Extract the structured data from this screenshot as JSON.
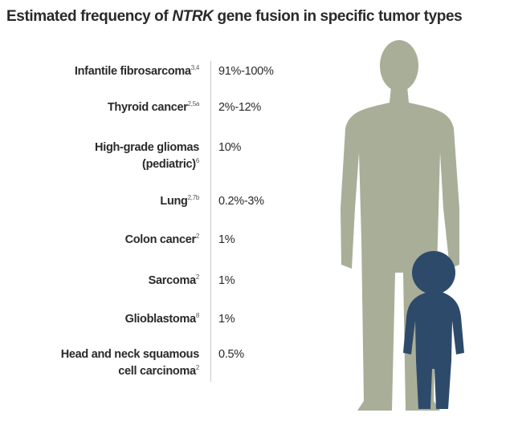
{
  "title": {
    "before": "Estimated frequency of",
    "emphasis": "NTRK",
    "after": "gene fusion in specific tumor types"
  },
  "rows": [
    {
      "lines": [
        "Infantile fibrosarcoma"
      ],
      "sup": "3,4",
      "value": "91%-100%"
    },
    {
      "lines": [
        "Thyroid cancer"
      ],
      "sup": "2,5a",
      "value": "2%-12%"
    },
    {
      "lines": [
        "High-grade gliomas",
        "(pediatric)"
      ],
      "sup": "6",
      "value": "10%"
    },
    {
      "lines": [
        "Lung"
      ],
      "sup": "2,7b",
      "value": "0.2%-3%"
    },
    {
      "lines": [
        "Colon cancer"
      ],
      "sup": "2",
      "value": "1%"
    },
    {
      "lines": [
        "Sarcoma"
      ],
      "sup": "2",
      "value": "1%"
    },
    {
      "lines": [
        "Glioblastoma"
      ],
      "sup": "8",
      "value": "1%"
    },
    {
      "lines": [
        "Head and neck squamous",
        "cell carcinoma"
      ],
      "sup": "2",
      "value": "0.5%"
    }
  ]
}
